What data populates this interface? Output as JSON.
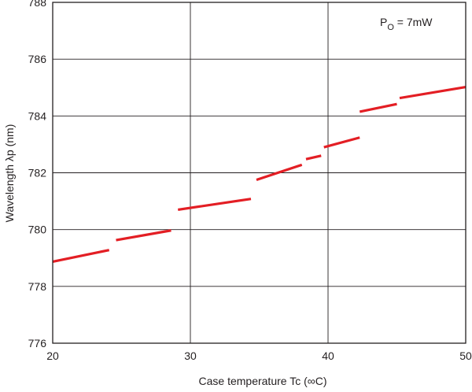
{
  "chart_data": {
    "type": "line",
    "title": "",
    "xlabel": "Case temperature Tc (∞C)",
    "ylabel": "Wavelength λp (nm)",
    "xlim": [
      20,
      50
    ],
    "ylim": [
      776,
      788
    ],
    "xticks": [
      "20",
      "30",
      "40",
      "50"
    ],
    "yticks": [
      "776",
      "778",
      "780",
      "782",
      "784",
      "786",
      "788"
    ],
    "grid": true,
    "annotation": {
      "main": "P",
      "sub": "O",
      "rest": " = 7mW"
    },
    "line_color": "#e31e24",
    "segments": [
      [
        [
          20.0,
          778.87
        ],
        [
          24.1,
          779.28
        ]
      ],
      [
        [
          24.6,
          779.63
        ],
        [
          28.6,
          779.97
        ]
      ],
      [
        [
          29.1,
          780.7
        ],
        [
          34.4,
          781.08
        ]
      ],
      [
        [
          34.8,
          781.75
        ],
        [
          38.1,
          782.28
        ]
      ],
      [
        [
          38.4,
          782.48
        ],
        [
          39.5,
          782.6
        ]
      ],
      [
        [
          39.7,
          782.9
        ],
        [
          42.3,
          783.24
        ]
      ],
      [
        [
          42.3,
          784.15
        ],
        [
          45.0,
          784.42
        ]
      ],
      [
        [
          45.2,
          784.63
        ],
        [
          50.0,
          785.02
        ]
      ]
    ]
  }
}
